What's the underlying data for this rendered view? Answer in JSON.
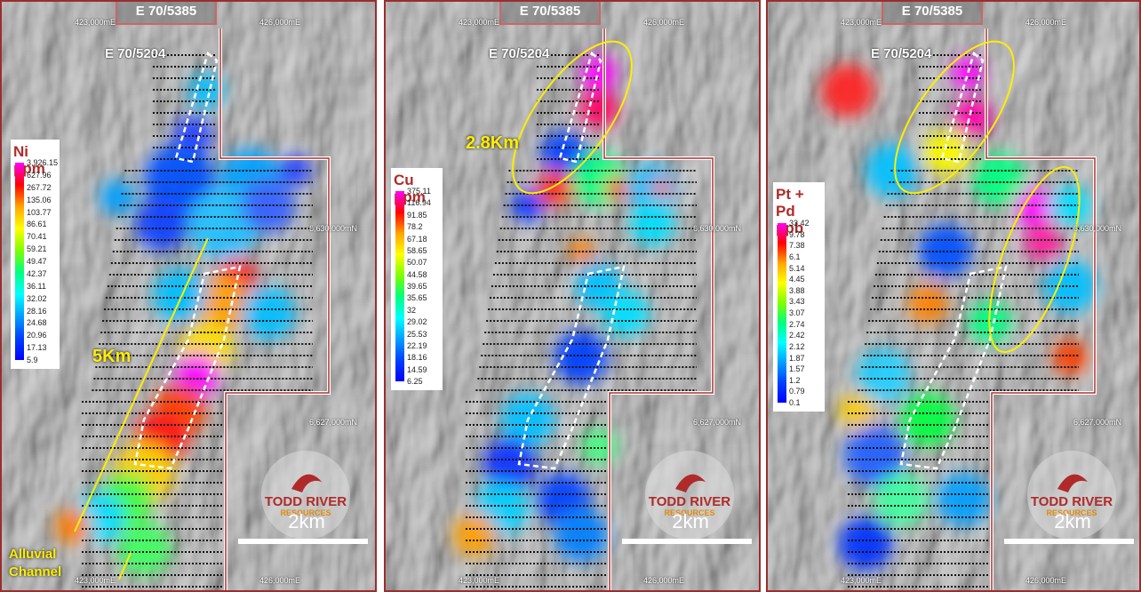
{
  "panels": [
    {
      "tenements": [
        "E 70/5385",
        "E 70/5204"
      ],
      "grid_top": [
        "423,000mE",
        "426,000mE"
      ],
      "grid_bottom": [
        "423,000mE",
        "426,000mE"
      ],
      "grid_north": [
        "6,630,000mN",
        "6,627,000mN"
      ],
      "legend": {
        "title": "Ni ppm",
        "labels": [
          "3,926.15",
          "627.96",
          "267.72",
          "135.06",
          "103.77",
          "86.61",
          "70.41",
          "59.21",
          "49.47",
          "42.37",
          "36.11",
          "32.02",
          "28.16",
          "24.68",
          "20.96",
          "17.13",
          "5.9"
        ]
      },
      "annotations": [
        "5Km",
        "Alluvial Channel"
      ],
      "logo": {
        "name": "TODD RIVER",
        "sub": "RESOURCES"
      },
      "scale": "2km"
    },
    {
      "tenements": [
        "E 70/5385",
        "E 70/5204"
      ],
      "grid_top": [
        "423,000mE",
        "426,000mE"
      ],
      "grid_bottom": [
        "423,000mE",
        "426,000mE"
      ],
      "grid_north": [
        "6,630,000mN",
        "6,627,000mN"
      ],
      "legend": {
        "title": "Cu ppm",
        "labels": [
          "375.11",
          "116.94",
          "91.85",
          "78.2",
          "67.18",
          "58.65",
          "50.07",
          "44.58",
          "39.65",
          "35.65",
          "32",
          "29.02",
          "25.53",
          "22.19",
          "18.16",
          "14.59",
          "6.25"
        ]
      },
      "annotations": [
        "2.8Km"
      ],
      "logo": {
        "name": "TODD RIVER",
        "sub": "RESOURCES"
      },
      "scale": "2km"
    },
    {
      "tenements": [
        "E 70/5385",
        "E 70/5204"
      ],
      "grid_top": [
        "423,000mE",
        "426,000mE"
      ],
      "grid_bottom": [
        "423,000mE",
        "426,000mE"
      ],
      "grid_north": [
        "6,630,000mN",
        "6,627,000mN"
      ],
      "legend": {
        "title": "Pt + Pd ppb",
        "labels": [
          "33.42",
          "9.78",
          "7.38",
          "6.1",
          "5.14",
          "4.45",
          "3.88",
          "3.43",
          "3.07",
          "2.74",
          "2.42",
          "2.12",
          "1.87",
          "1.57",
          "1.2",
          "0.79",
          "0.1"
        ]
      },
      "logo": {
        "name": "TODD RIVER",
        "sub": "RESOURCES"
      },
      "scale": "2km"
    }
  ]
}
